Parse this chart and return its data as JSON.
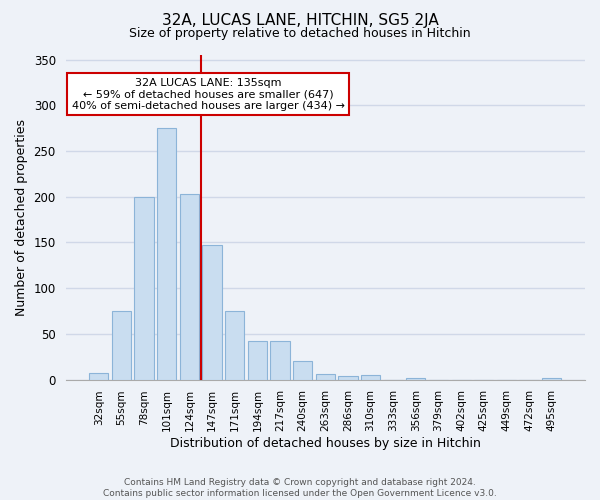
{
  "title": "32A, LUCAS LANE, HITCHIN, SG5 2JA",
  "subtitle": "Size of property relative to detached houses in Hitchin",
  "xlabel": "Distribution of detached houses by size in Hitchin",
  "ylabel": "Number of detached properties",
  "bar_labels": [
    "32sqm",
    "55sqm",
    "78sqm",
    "101sqm",
    "124sqm",
    "147sqm",
    "171sqm",
    "194sqm",
    "217sqm",
    "240sqm",
    "263sqm",
    "286sqm",
    "310sqm",
    "333sqm",
    "356sqm",
    "379sqm",
    "402sqm",
    "425sqm",
    "449sqm",
    "472sqm",
    "495sqm"
  ],
  "bar_values": [
    7,
    75,
    200,
    275,
    203,
    147,
    75,
    42,
    42,
    20,
    6,
    4,
    5,
    0,
    2,
    0,
    0,
    0,
    0,
    0,
    2
  ],
  "bar_color": "#c9ddf0",
  "bar_edge_color": "#8cb4d8",
  "vline_x": 4.5,
  "vline_color": "#cc0000",
  "ylim": [
    0,
    355
  ],
  "yticks": [
    0,
    50,
    100,
    150,
    200,
    250,
    300,
    350
  ],
  "annotation_text": "32A LUCAS LANE: 135sqm\n← 59% of detached houses are smaller (647)\n40% of semi-detached houses are larger (434) →",
  "annotation_box_color": "#ffffff",
  "annotation_box_edge": "#cc0000",
  "footer_text": "Contains HM Land Registry data © Crown copyright and database right 2024.\nContains public sector information licensed under the Open Government Licence v3.0.",
  "bg_color": "#eef2f8",
  "grid_color": "#d0d8e8"
}
